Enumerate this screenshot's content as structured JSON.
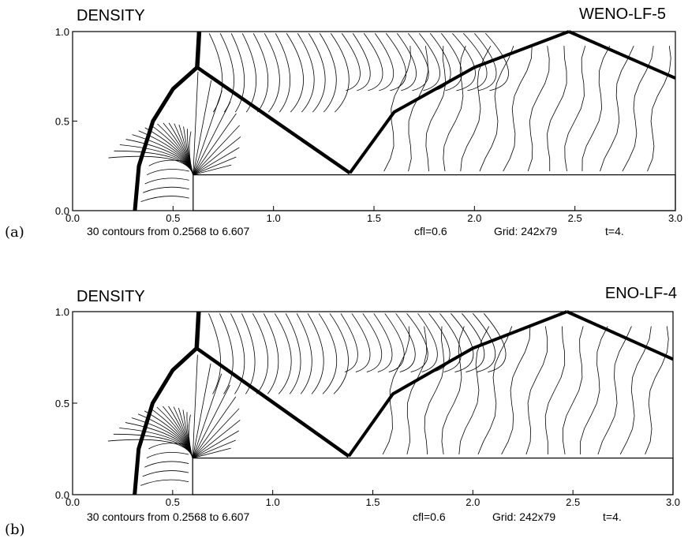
{
  "chart_data": [
    {
      "type": "contour",
      "panel_label": "(a)",
      "title": "DENSITY",
      "scheme": "WENO-LF-5",
      "xlim": [
        0.0,
        3.0
      ],
      "ylim": [
        0.0,
        1.0
      ],
      "x_ticks": [
        "0.0",
        "0.5",
        "1.0",
        "1.5",
        "2.0",
        "2.5",
        "3.0"
      ],
      "y_ticks": [
        "0.0",
        "0.5",
        "1.0"
      ],
      "caption": {
        "contours": "30 contours from 0.2568 to 6.607",
        "cfl": "cfl=0.6",
        "grid": "Grid: 242x79",
        "time": "t=4."
      },
      "step": {
        "x": [
          0.6,
          3.0
        ],
        "y": [
          0.0,
          0.2
        ]
      },
      "shocks": {
        "bow": [
          [
            0.31,
            0.0
          ],
          [
            0.33,
            0.25
          ],
          [
            0.4,
            0.5
          ],
          [
            0.5,
            0.68
          ],
          [
            0.62,
            0.8
          ]
        ],
        "mach_stem": [
          [
            0.62,
            0.8
          ],
          [
            0.63,
            1.0
          ]
        ],
        "reflected": [
          [
            0.62,
            0.8
          ],
          [
            1.38,
            0.21
          ]
        ],
        "second": [
          [
            1.38,
            0.21
          ],
          [
            1.6,
            0.55
          ],
          [
            2.0,
            0.8
          ],
          [
            2.47,
            1.0
          ]
        ],
        "third": [
          [
            2.47,
            1.0
          ],
          [
            3.0,
            0.74
          ]
        ]
      }
    },
    {
      "type": "contour",
      "panel_label": "(b)",
      "title": "DENSITY",
      "scheme": "ENO-LF-4",
      "xlim": [
        0.0,
        3.0
      ],
      "ylim": [
        0.0,
        1.0
      ],
      "x_ticks": [
        "0.0",
        "0.5",
        "1.0",
        "1.5",
        "2.0",
        "2.5",
        "3.0"
      ],
      "y_ticks": [
        "0.0",
        "0.5",
        "1.0"
      ],
      "caption": {
        "contours": "30 contours from 0.2568 to 6.607",
        "cfl": "cfl=0.6",
        "grid": "Grid: 242x79",
        "time": "t=4."
      },
      "step": {
        "x": [
          0.6,
          3.0
        ],
        "y": [
          0.0,
          0.2
        ]
      },
      "shocks": {
        "bow": [
          [
            0.31,
            0.0
          ],
          [
            0.33,
            0.25
          ],
          [
            0.4,
            0.5
          ],
          [
            0.5,
            0.68
          ],
          [
            0.62,
            0.8
          ]
        ],
        "mach_stem": [
          [
            0.62,
            0.8
          ],
          [
            0.63,
            1.0
          ]
        ],
        "reflected": [
          [
            0.62,
            0.8
          ],
          [
            1.38,
            0.21
          ]
        ],
        "second": [
          [
            1.38,
            0.21
          ],
          [
            1.6,
            0.55
          ],
          [
            2.0,
            0.8
          ],
          [
            2.47,
            1.0
          ]
        ],
        "third": [
          [
            2.47,
            1.0
          ],
          [
            3.0,
            0.74
          ]
        ]
      }
    }
  ]
}
